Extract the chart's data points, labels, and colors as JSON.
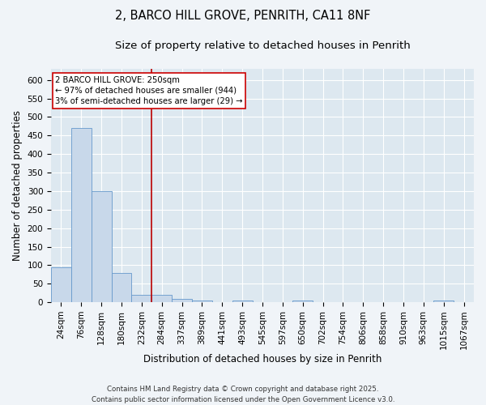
{
  "title_line1": "2, BARCO HILL GROVE, PENRITH, CA11 8NF",
  "title_line2": "Size of property relative to detached houses in Penrith",
  "xlabel": "Distribution of detached houses by size in Penrith",
  "ylabel": "Number of detached properties",
  "categories": [
    "24sqm",
    "76sqm",
    "128sqm",
    "180sqm",
    "232sqm",
    "284sqm",
    "337sqm",
    "389sqm",
    "441sqm",
    "493sqm",
    "545sqm",
    "597sqm",
    "650sqm",
    "702sqm",
    "754sqm",
    "806sqm",
    "858sqm",
    "910sqm",
    "963sqm",
    "1015sqm",
    "1067sqm"
  ],
  "values": [
    95,
    470,
    300,
    78,
    20,
    20,
    8,
    4,
    0,
    5,
    0,
    0,
    5,
    0,
    0,
    0,
    0,
    0,
    0,
    4,
    0
  ],
  "bar_color": "#c8d8ea",
  "bar_edge_color": "#6699cc",
  "red_line_x": 4.5,
  "annotation_text": "2 BARCO HILL GROVE: 250sqm\n← 97% of detached houses are smaller (944)\n3% of semi-detached houses are larger (29) →",
  "annotation_box_facecolor": "#ffffff",
  "annotation_box_edgecolor": "#cc0000",
  "ylim": [
    0,
    630
  ],
  "yticks": [
    0,
    50,
    100,
    150,
    200,
    250,
    300,
    350,
    400,
    450,
    500,
    550,
    600
  ],
  "fig_background": "#f0f4f8",
  "axes_background": "#dde8f0",
  "grid_color": "#ffffff",
  "footer_line1": "Contains HM Land Registry data © Crown copyright and database right 2025.",
  "footer_line2": "Contains public sector information licensed under the Open Government Licence v3.0.",
  "red_line_color": "#bb0000",
  "title_fontsize": 10.5,
  "subtitle_fontsize": 9.5,
  "axis_label_fontsize": 8.5,
  "tick_fontsize": 7.5,
  "annot_fontsize": 7.2,
  "footer_fontsize": 6.2
}
